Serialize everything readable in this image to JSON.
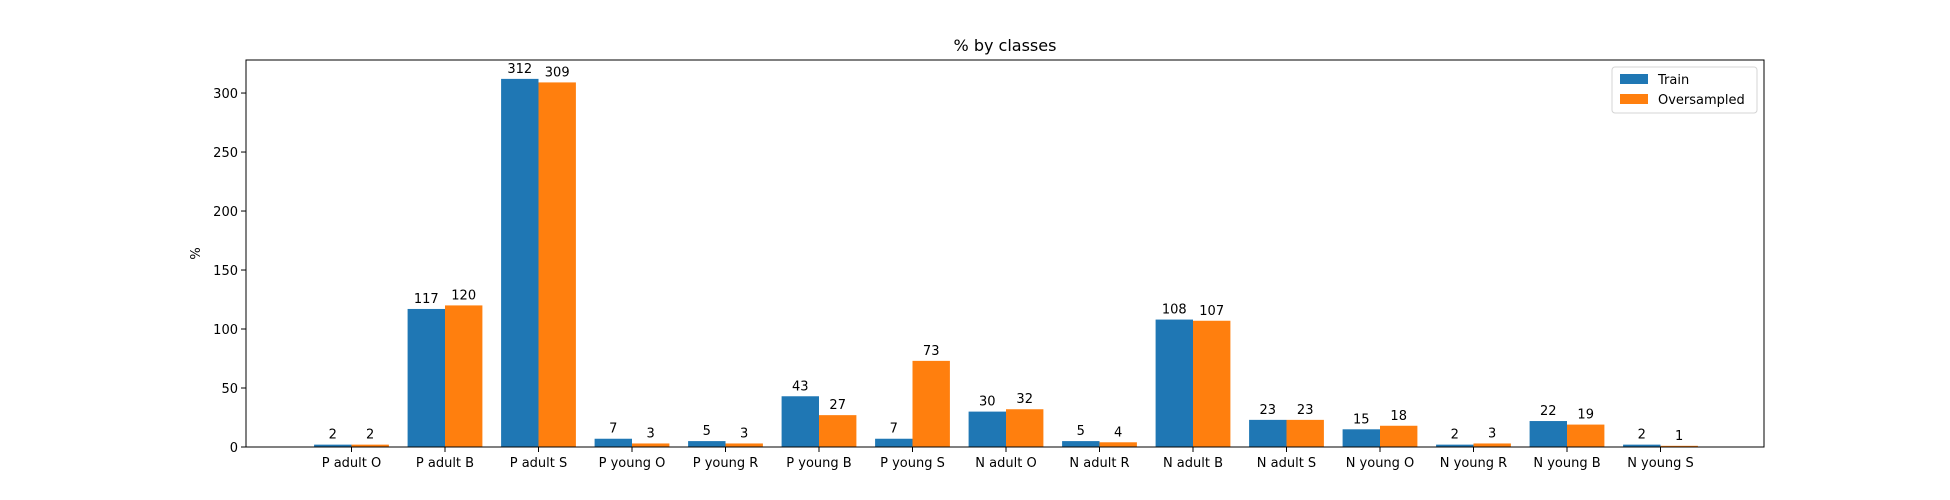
{
  "chart_data": {
    "type": "bar",
    "title": "% by classes",
    "xlabel": "",
    "ylabel": "%",
    "ylim": [
      0,
      328
    ],
    "yticks": [
      0,
      50,
      100,
      150,
      200,
      250,
      300
    ],
    "categories": [
      "P adult O",
      "P adult B",
      "P adult S",
      "P young O",
      "P young R",
      "P young B",
      "P young S",
      "N adult O",
      "N adult R",
      "N adult B",
      "N adult S",
      "N young O",
      "N young R",
      "N young B",
      "N young S"
    ],
    "series": [
      {
        "name": "Train",
        "color": "#1f77b4",
        "values": [
          2,
          117,
          312,
          7,
          5,
          43,
          7,
          30,
          5,
          108,
          23,
          15,
          2,
          22,
          2
        ]
      },
      {
        "name": "Oversampled",
        "color": "#ff7f0e",
        "values": [
          2,
          120,
          309,
          3,
          3,
          27,
          73,
          32,
          4,
          107,
          23,
          18,
          3,
          19,
          1
        ]
      }
    ],
    "data_labels": true,
    "grid": false,
    "legend_position": "top-right"
  }
}
